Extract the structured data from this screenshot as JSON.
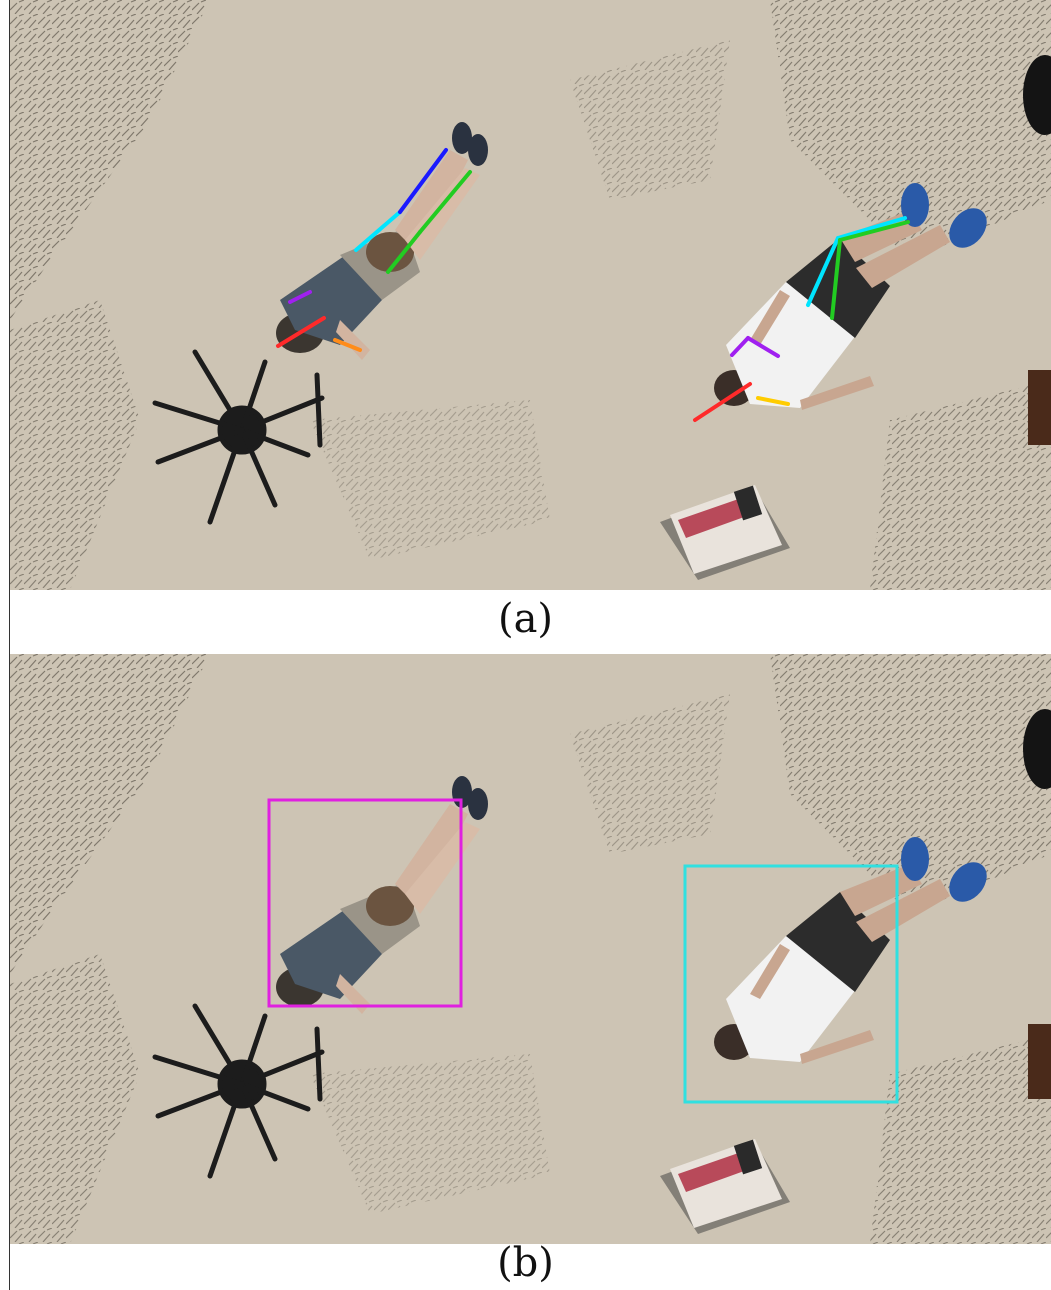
{
  "figure": {
    "panels": [
      {
        "id": "a",
        "caption": "(a)",
        "overlay": "pose-skeletons",
        "subjects": [
          {
            "name": "person-left",
            "limb_colors": [
              "#ff2a2a",
              "#ff8c1a",
              "#a020f0",
              "#00e5ff",
              "#1a1aff",
              "#22cc22"
            ]
          },
          {
            "name": "person-right",
            "limb_colors": [
              "#ff2a2a",
              "#ffcc00",
              "#a020f0",
              "#00e5ff",
              "#22cc22"
            ]
          }
        ]
      },
      {
        "id": "b",
        "caption": "(b)",
        "overlay": "bounding-boxes",
        "boxes": [
          {
            "subject": "person-left",
            "color": "#e020e0"
          },
          {
            "subject": "person-right",
            "color": "#30e0e0"
          }
        ]
      }
    ],
    "colors": {
      "ground": "#cfc6b6",
      "grass": "#8a8478",
      "shadow": "#1c1c1c"
    }
  }
}
